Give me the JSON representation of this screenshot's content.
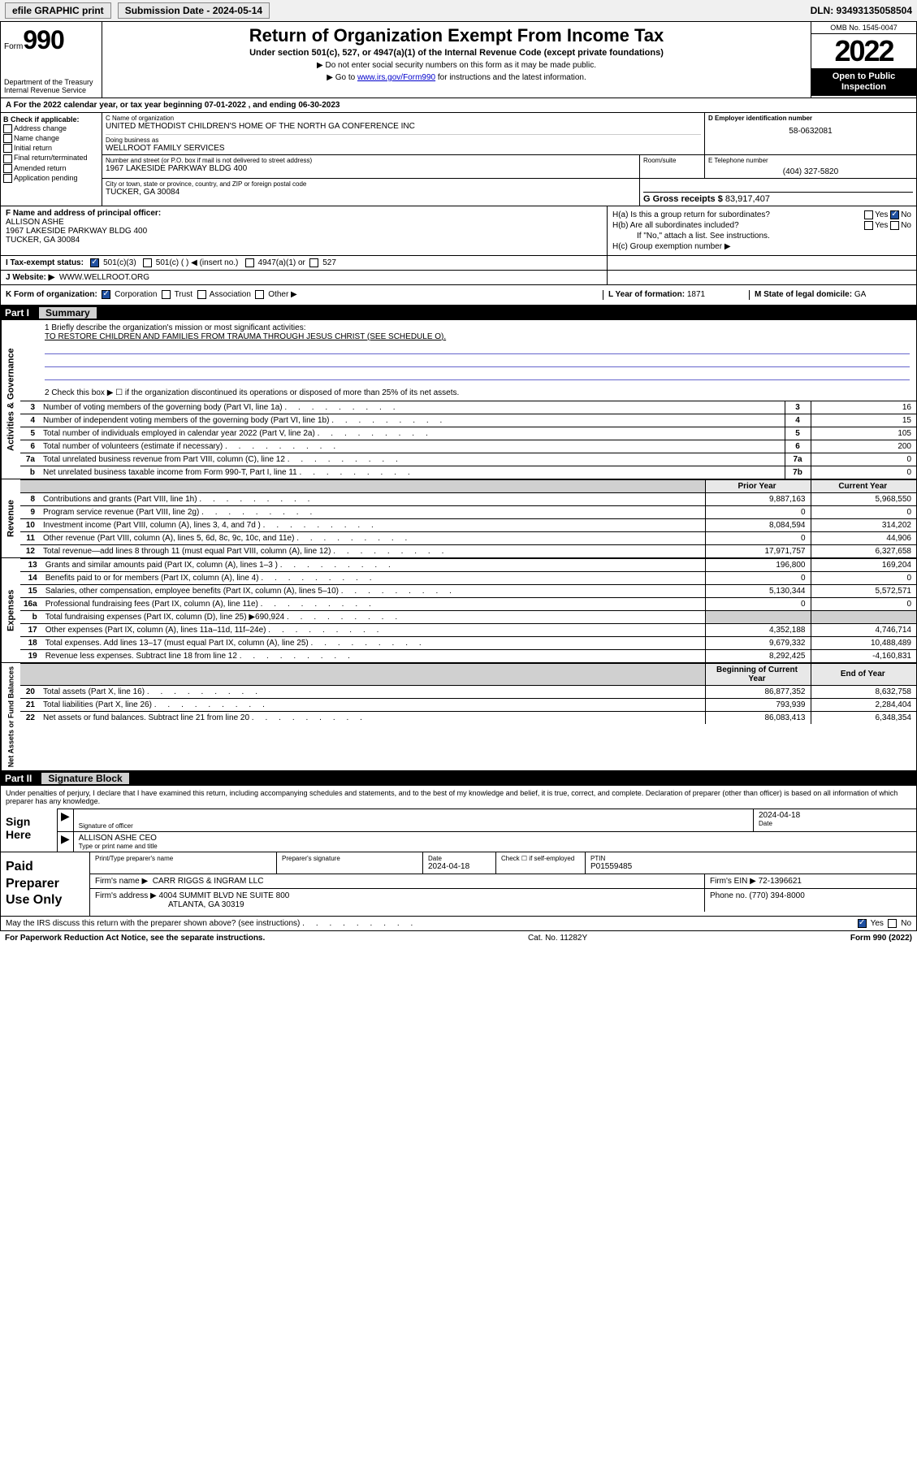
{
  "topbar": {
    "efile_label": "efile GRAPHIC print",
    "submission_label": "Submission Date - 2024-05-14",
    "dln": "DLN: 93493135058504"
  },
  "header": {
    "form_prefix": "Form",
    "form_number": "990",
    "dept": "Department of the Treasury Internal Revenue Service",
    "title": "Return of Organization Exempt From Income Tax",
    "subtitle": "Under section 501(c), 527, or 4947(a)(1) of the Internal Revenue Code (except private foundations)",
    "note1": "▶ Do not enter social security numbers on this form as it may be made public.",
    "note2_prefix": "▶ Go to ",
    "note2_link": "www.irs.gov/Form990",
    "note2_suffix": " for instructions and the latest information.",
    "omb": "OMB No. 1545-0047",
    "year": "2022",
    "open_public": "Open to Public Inspection"
  },
  "line_a": "A For the 2022 calendar year, or tax year beginning 07-01-2022   , and ending 06-30-2023",
  "section_b": {
    "label": "B Check if applicable:",
    "opts": [
      "Address change",
      "Name change",
      "Initial return",
      "Final return/terminated",
      "Amended return",
      "Application pending"
    ]
  },
  "section_c": {
    "name_lbl": "C Name of organization",
    "name": "UNITED METHODIST CHILDREN'S HOME OF THE NORTH GA CONFERENCE INC",
    "dba_lbl": "Doing business as",
    "dba": "WELLROOT FAMILY SERVICES",
    "addr_lbl": "Number and street (or P.O. box if mail is not delivered to street address)",
    "addr": "1967 LAKESIDE PARKWAY BLDG 400",
    "room_lbl": "Room/suite",
    "city_lbl": "City or town, state or province, country, and ZIP or foreign postal code",
    "city": "TUCKER, GA  30084"
  },
  "section_d": {
    "lbl": "D Employer identification number",
    "val": "58-0632081"
  },
  "section_e": {
    "lbl": "E Telephone number",
    "val": "(404) 327-5820"
  },
  "section_g": {
    "lbl": "G Gross receipts $",
    "val": "83,917,407"
  },
  "section_f": {
    "lbl": "F Name and address of principal officer:",
    "name": "ALLISON ASHE",
    "addr1": "1967 LAKESIDE PARKWAY BLDG 400",
    "addr2": "TUCKER, GA  30084"
  },
  "section_h": {
    "ha": "H(a)  Is this a group return for subordinates?",
    "hb": "H(b)  Are all subordinates included?",
    "hb_note": "If \"No,\" attach a list. See instructions.",
    "hc": "H(c)  Group exemption number ▶"
  },
  "row_i": {
    "lbl": "I   Tax-exempt status:",
    "opts": [
      "501(c)(3)",
      "501(c) (  ) ◀ (insert no.)",
      "4947(a)(1) or",
      "527"
    ]
  },
  "row_j": {
    "lbl": "J   Website: ▶",
    "val": "WWW.WELLROOT.ORG"
  },
  "row_k": {
    "lbl": "K Form of organization:",
    "opts": [
      "Corporation",
      "Trust",
      "Association",
      "Other ▶"
    ],
    "l_lbl": "L Year of formation:",
    "l_val": "1871",
    "m_lbl": "M State of legal domicile:",
    "m_val": "GA"
  },
  "part1": {
    "label": "Part I",
    "title": "Summary",
    "mission_lbl": "1   Briefly describe the organization's mission or most significant activities:",
    "mission": "TO RESTORE CHILDREN AND FAMILIES FROM TRAUMA THROUGH JESUS CHRIST (SEE SCHEDULE O).",
    "line2": "2   Check this box ▶ ☐  if the organization discontinued its operations or disposed of more than 25% of its net assets.",
    "governance_rows": [
      {
        "n": "3",
        "d": "Number of voting members of the governing body (Part VI, line 1a)",
        "b": "3",
        "v": "16"
      },
      {
        "n": "4",
        "d": "Number of independent voting members of the governing body (Part VI, line 1b)",
        "b": "4",
        "v": "15"
      },
      {
        "n": "5",
        "d": "Total number of individuals employed in calendar year 2022 (Part V, line 2a)",
        "b": "5",
        "v": "105"
      },
      {
        "n": "6",
        "d": "Total number of volunteers (estimate if necessary)",
        "b": "6",
        "v": "200"
      },
      {
        "n": "7a",
        "d": "Total unrelated business revenue from Part VIII, column (C), line 12",
        "b": "7a",
        "v": "0"
      },
      {
        "n": "b",
        "d": "Net unrelated business taxable income from Form 990-T, Part I, line 11",
        "b": "7b",
        "v": "0"
      }
    ],
    "col_hdr_prior": "Prior Year",
    "col_hdr_curr": "Current Year",
    "revenue_rows": [
      {
        "n": "8",
        "d": "Contributions and grants (Part VIII, line 1h)",
        "p": "9,887,163",
        "c": "5,968,550"
      },
      {
        "n": "9",
        "d": "Program service revenue (Part VIII, line 2g)",
        "p": "0",
        "c": "0"
      },
      {
        "n": "10",
        "d": "Investment income (Part VIII, column (A), lines 3, 4, and 7d )",
        "p": "8,084,594",
        "c": "314,202"
      },
      {
        "n": "11",
        "d": "Other revenue (Part VIII, column (A), lines 5, 6d, 8c, 9c, 10c, and 11e)",
        "p": "0",
        "c": "44,906"
      },
      {
        "n": "12",
        "d": "Total revenue—add lines 8 through 11 (must equal Part VIII, column (A), line 12)",
        "p": "17,971,757",
        "c": "6,327,658"
      }
    ],
    "expense_rows": [
      {
        "n": "13",
        "d": "Grants and similar amounts paid (Part IX, column (A), lines 1–3 )",
        "p": "196,800",
        "c": "169,204"
      },
      {
        "n": "14",
        "d": "Benefits paid to or for members (Part IX, column (A), line 4)",
        "p": "0",
        "c": "0"
      },
      {
        "n": "15",
        "d": "Salaries, other compensation, employee benefits (Part IX, column (A), lines 5–10)",
        "p": "5,130,344",
        "c": "5,572,571"
      },
      {
        "n": "16a",
        "d": "Professional fundraising fees (Part IX, column (A), line 11e)",
        "p": "0",
        "c": "0"
      },
      {
        "n": "b",
        "d": "Total fundraising expenses (Part IX, column (D), line 25) ▶690,924",
        "p": "",
        "c": "",
        "shade": true
      },
      {
        "n": "17",
        "d": "Other expenses (Part IX, column (A), lines 11a–11d, 11f–24e)",
        "p": "4,352,188",
        "c": "4,746,714"
      },
      {
        "n": "18",
        "d": "Total expenses. Add lines 13–17 (must equal Part IX, column (A), line 25)",
        "p": "9,679,332",
        "c": "10,488,489"
      },
      {
        "n": "19",
        "d": "Revenue less expenses. Subtract line 18 from line 12",
        "p": "8,292,425",
        "c": "-4,160,831"
      }
    ],
    "col_hdr_beg": "Beginning of Current Year",
    "col_hdr_end": "End of Year",
    "assets_rows": [
      {
        "n": "20",
        "d": "Total assets (Part X, line 16)",
        "p": "86,877,352",
        "c": "8,632,758"
      },
      {
        "n": "21",
        "d": "Total liabilities (Part X, line 26)",
        "p": "793,939",
        "c": "2,284,404"
      },
      {
        "n": "22",
        "d": "Net assets or fund balances. Subtract line 21 from line 20",
        "p": "86,083,413",
        "c": "6,348,354"
      }
    ],
    "vert_labels": {
      "gov": "Activities & Governance",
      "rev": "Revenue",
      "exp": "Expenses",
      "net": "Net Assets or Fund Balances"
    }
  },
  "part2": {
    "label": "Part II",
    "title": "Signature Block",
    "declare": "Under penalties of perjury, I declare that I have examined this return, including accompanying schedules and statements, and to the best of my knowledge and belief, it is true, correct, and complete. Declaration of preparer (other than officer) is based on all information of which preparer has any knowledge.",
    "sign_here": "Sign Here",
    "sig_officer_lbl": "Signature of officer",
    "sig_date": "2024-04-18",
    "date_lbl": "Date",
    "officer_name": "ALLISON ASHE CEO",
    "officer_name_lbl": "Type or print name and title"
  },
  "preparer": {
    "label": "Paid Preparer Use Only",
    "name_lbl": "Print/Type preparer's name",
    "sig_lbl": "Preparer's signature",
    "date_lbl": "Date",
    "date": "2024-04-18",
    "check_lbl": "Check ☐ if self-employed",
    "ptin_lbl": "PTIN",
    "ptin": "P01559485",
    "firm_name_lbl": "Firm's name     ▶",
    "firm_name": "CARR RIGGS & INGRAM LLC",
    "firm_ein_lbl": "Firm's EIN ▶",
    "firm_ein": "72-1396621",
    "firm_addr_lbl": "Firm's address ▶",
    "firm_addr1": "4004 SUMMIT BLVD NE SUITE 800",
    "firm_addr2": "ATLANTA, GA  30319",
    "phone_lbl": "Phone no.",
    "phone": "(770) 394-8000"
  },
  "footer": {
    "discuss": "May the IRS discuss this return with the preparer shown above? (see instructions)",
    "paperwork": "For Paperwork Reduction Act Notice, see the separate instructions.",
    "cat": "Cat. No. 11282Y",
    "form": "Form 990 (2022)"
  }
}
